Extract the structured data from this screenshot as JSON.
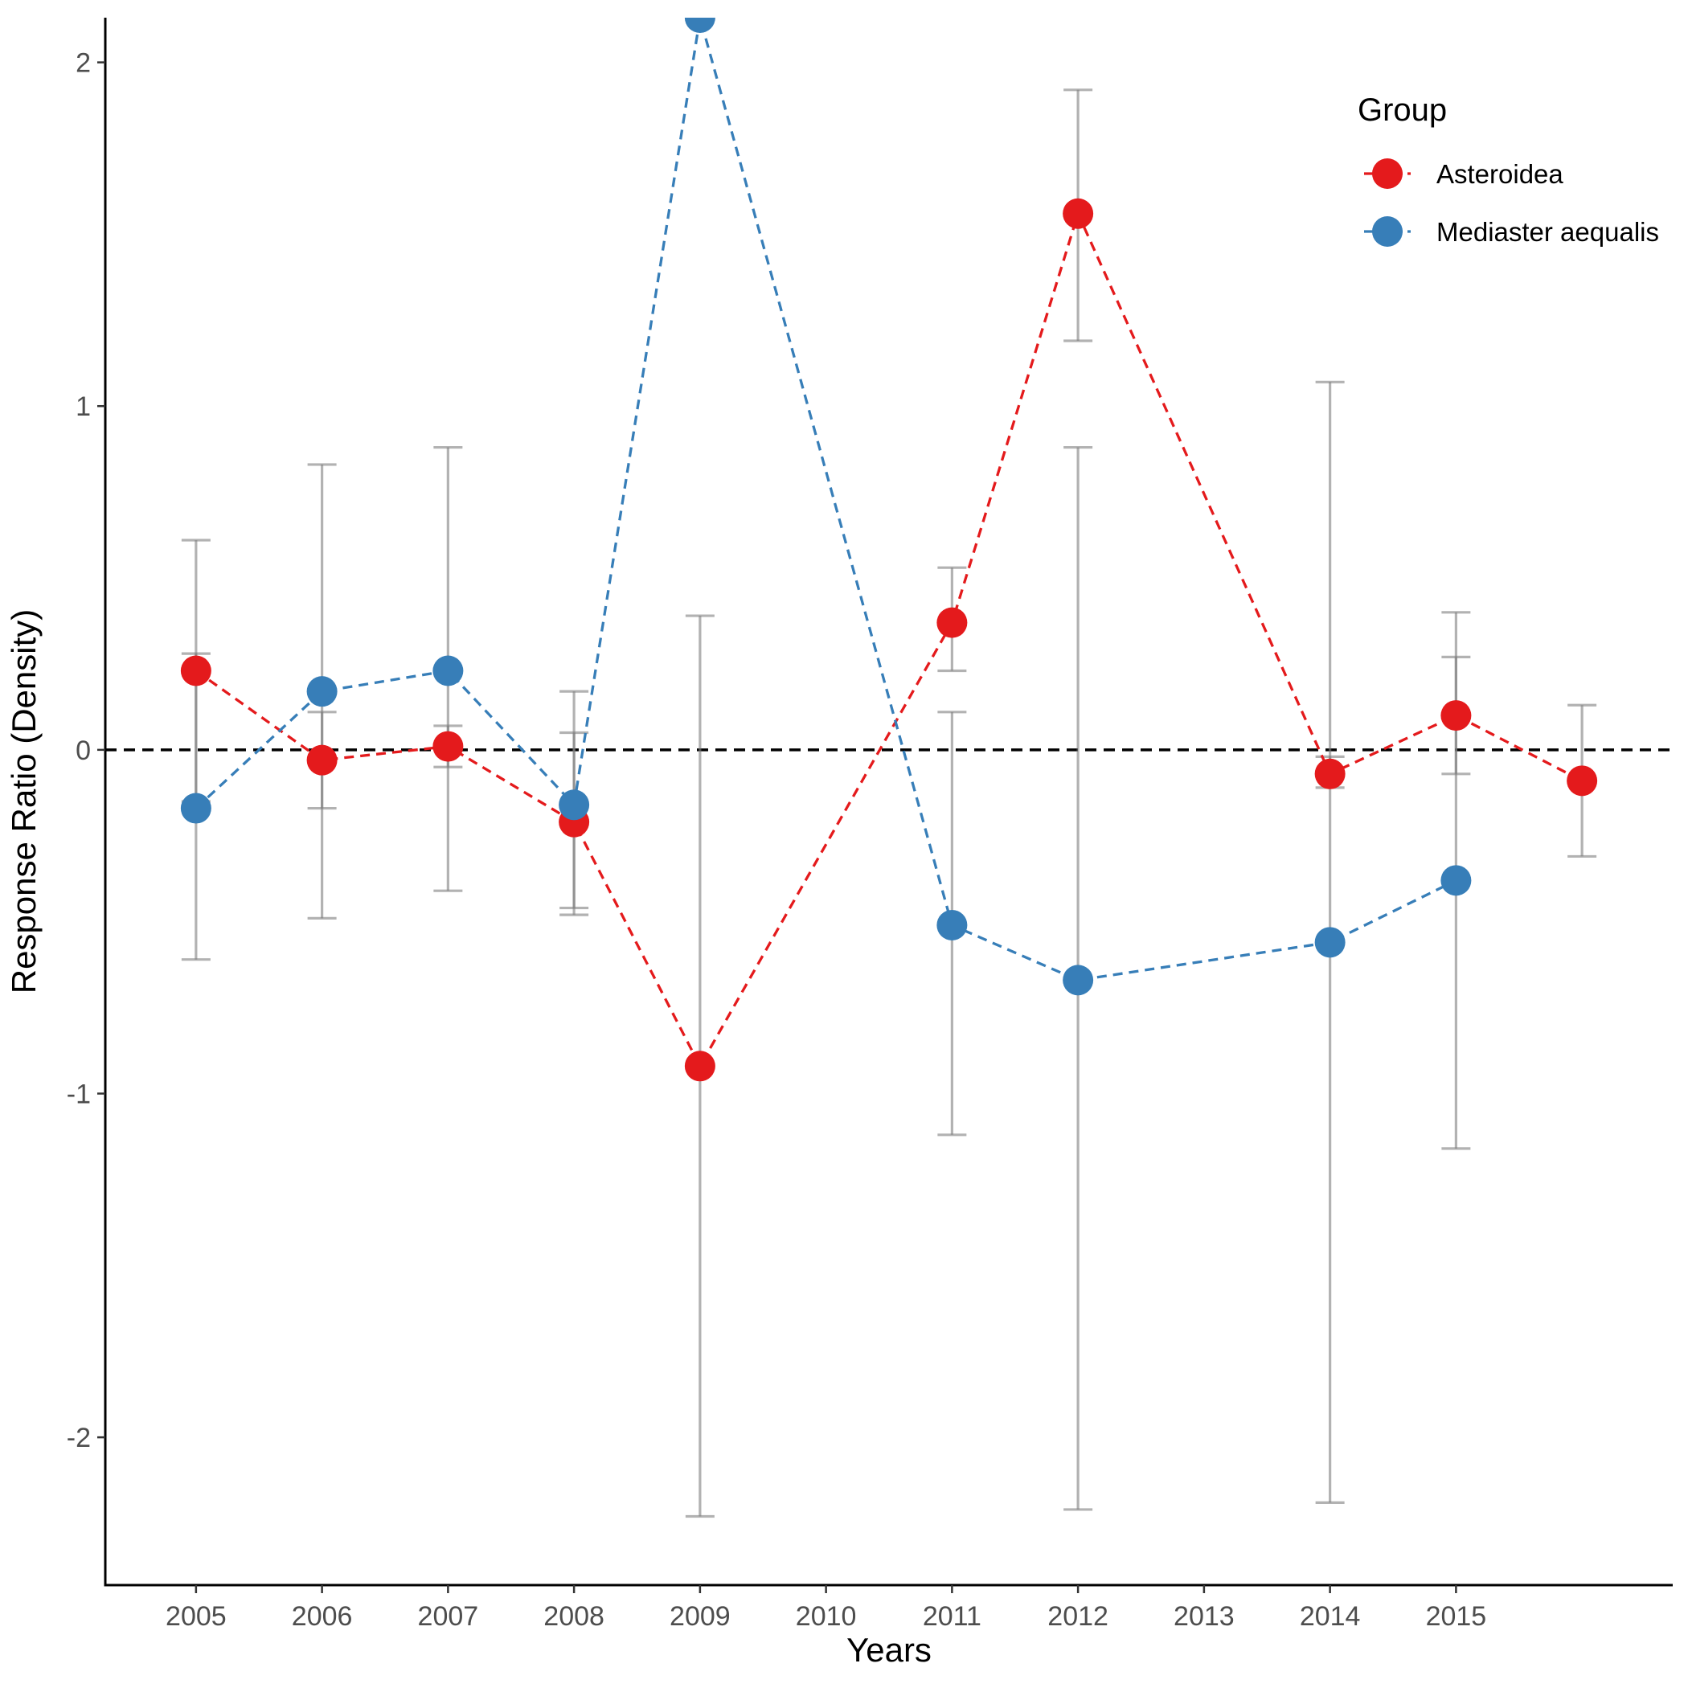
{
  "chart_data": {
    "type": "line",
    "title": "",
    "xlabel": "Years",
    "ylabel": "Response Ratio (Density)",
    "x_ticks": [
      "2005",
      "2006",
      "2007",
      "2008",
      "2009",
      "2010",
      "2011",
      "2012",
      "2013",
      "2014",
      "2015"
    ],
    "y_ticks": [
      "-2",
      "-1",
      "0",
      "1",
      "2"
    ],
    "xlim": [
      2004.28,
      2016.72
    ],
    "ylim": [
      -2.43,
      2.13
    ],
    "reference_line_y": 0,
    "grid": false,
    "legend": {
      "title": "Group",
      "position": "right-top"
    },
    "series": [
      {
        "name": "Asteroidea",
        "color": "#e41a1c",
        "points": [
          {
            "x": 2005,
            "y": 0.23,
            "ymin": -0.15,
            "ymax": 0.61
          },
          {
            "x": 2006,
            "y": -0.03,
            "ymin": -0.17,
            "ymax": 0.11
          },
          {
            "x": 2007,
            "y": 0.01,
            "ymin": -0.05,
            "ymax": 0.07
          },
          {
            "x": 2008,
            "y": -0.21,
            "ymin": -0.46,
            "ymax": 0.05
          },
          {
            "x": 2009,
            "y": -0.92,
            "ymin": -2.23,
            "ymax": 0.39
          },
          {
            "x": 2011,
            "y": 0.37,
            "ymin": 0.23,
            "ymax": 0.53
          },
          {
            "x": 2012,
            "y": 1.56,
            "ymin": 1.19,
            "ymax": 1.92
          },
          {
            "x": 2014,
            "y": -0.07,
            "ymin": -0.11,
            "ymax": -0.02
          },
          {
            "x": 2015,
            "y": 0.1,
            "ymin": -0.07,
            "ymax": 0.27
          },
          {
            "x": 2016,
            "y": -0.09,
            "ymin": -0.31,
            "ymax": 0.13
          }
        ]
      },
      {
        "name": "Mediaster aequalis",
        "color": "#377eb8",
        "points": [
          {
            "x": 2005,
            "y": -0.17,
            "ymin": -0.61,
            "ymax": 0.28
          },
          {
            "x": 2006,
            "y": 0.17,
            "ymin": -0.49,
            "ymax": 0.83
          },
          {
            "x": 2007,
            "y": 0.23,
            "ymin": -0.41,
            "ymax": 0.88
          },
          {
            "x": 2008,
            "y": -0.16,
            "ymin": -0.48,
            "ymax": 0.17
          },
          {
            "x": 2009,
            "y": 2.13,
            "ymin": null,
            "ymax": null
          },
          {
            "x": 2011,
            "y": -0.51,
            "ymin": -1.12,
            "ymax": 0.11
          },
          {
            "x": 2012,
            "y": -0.67,
            "ymin": -2.21,
            "ymax": 0.88
          },
          {
            "x": 2014,
            "y": -0.56,
            "ymin": -2.19,
            "ymax": 1.07
          },
          {
            "x": 2015,
            "y": -0.38,
            "ymin": -1.16,
            "ymax": 0.4
          }
        ]
      }
    ]
  }
}
